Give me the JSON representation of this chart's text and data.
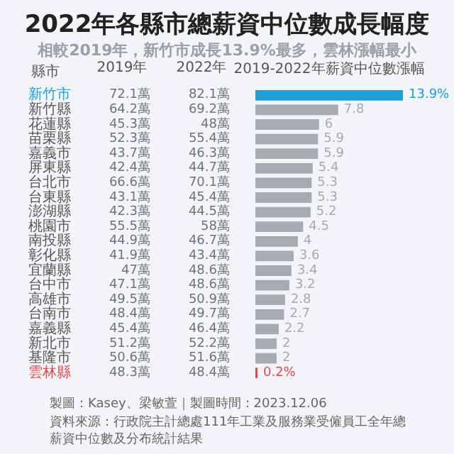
{
  "chart_data": [
    {
      "type": "bar",
      "orientation": "horizontal",
      "title": "2022年各縣市總薪資中位數成長幅度",
      "subtitle": "相較2019年，新竹市成長13.9%最多，雲林漲幅最小",
      "ylabel": "縣市",
      "categories": [
        "新竹市",
        "新竹縣",
        "花蓮縣",
        "苗栗縣",
        "嘉義市",
        "屏東縣",
        "台北市",
        "台東縣",
        "澎湖縣",
        "桃園市",
        "南投縣",
        "彰化縣",
        "宜蘭縣",
        "台中市",
        "高雄市",
        "台南市",
        "嘉義縣",
        "新北市",
        "基隆市",
        "雲林縣"
      ],
      "series": [
        {
          "name": "2019-2022年薪資中位數漲幅",
          "color": "#a7aab0",
          "colors": [
            "#1e9fd8",
            "#a7aab0",
            "#a7aab0",
            "#a7aab0",
            "#a7aab0",
            "#a7aab0",
            "#a7aab0",
            "#a7aab0",
            "#a7aab0",
            "#a7aab0",
            "#a7aab0",
            "#a7aab0",
            "#a7aab0",
            "#a7aab0",
            "#a7aab0",
            "#a7aab0",
            "#a7aab0",
            "#a7aab0",
            "#a7aab0",
            "#e2474f"
          ],
          "values": [
            13.9,
            7.8,
            6,
            5.9,
            5.9,
            5.4,
            5.3,
            5.3,
            5.2,
            4.5,
            4,
            3.6,
            3.4,
            3.2,
            2.8,
            2.7,
            2.2,
            2,
            2,
            0.2
          ],
          "value_labels": [
            "13.9%",
            "7.8",
            "6",
            "5.9",
            "5.9",
            "5.4",
            "5.3",
            "5.3",
            "5.2",
            "4.5",
            "4",
            "3.6",
            "3.4",
            "3.2",
            "2.8",
            "2.7",
            "2.2",
            "2",
            "2",
            "0.2%"
          ]
        }
      ],
      "annotations": [
        "製圖：Kasey、梁敏萱｜製圖時間：2023.12.06",
        "資料來源：行政院主計總處111年工業及服務業受僱員工全年總薪資中位數及分布統計結果"
      ]
    },
    {
      "type": "other",
      "categories": [
        "2019年",
        "2022年"
      ],
      "annotations": [
        "72.1萬",
        "82.1萬",
        "64.2萬",
        "69.2萬",
        "45.3萬",
        "48萬",
        "52.3萬",
        "55.4萬",
        "43.7萬",
        "46.3萬",
        "42.4萬",
        "44.7萬",
        "66.6萬",
        "70.1萬",
        "43.1萬",
        "45.4萬",
        "42.3萬",
        "44.5萬",
        "55.5萬",
        "58萬",
        "44.9萬",
        "46.7萬",
        "41.9萬",
        "43.4萬",
        "47萬",
        "48.6萬",
        "47.1萬",
        "48.6萬",
        "49.5萬",
        "50.9萬",
        "48.4萬",
        "49.7萬",
        "45.4萬",
        "46.4萬",
        "51.2萬",
        "52.2萬",
        "50.6萬",
        "51.6萬",
        "48.3萬",
        "48.4萬"
      ]
    }
  ]
}
